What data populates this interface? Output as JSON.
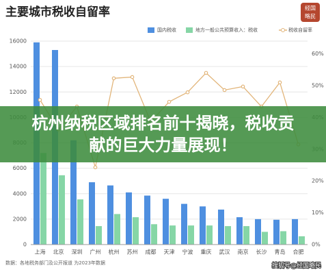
{
  "chart_data": {
    "type": "bar",
    "title": "主要城市税收自留率",
    "categories": [
      "上海",
      "北京",
      "深圳",
      "广州",
      "杭州",
      "苏州",
      "成都",
      "天津",
      "宁波",
      "重庆",
      "武汉",
      "南京",
      "长沙",
      "青岛",
      "合肥"
    ],
    "series": [
      {
        "name": "国内税收",
        "type": "bar",
        "color": "#4e8fe0",
        "values": [
          15900,
          15300,
          8200,
          4900,
          4650,
          4100,
          3850,
          3600,
          3200,
          3000,
          2750,
          2150,
          2000,
          1950,
          2000
        ]
      },
      {
        "name": "地方一般公共预算收入：税收",
        "type": "bar",
        "color": "#86d6a6",
        "values": [
          7200,
          5450,
          3550,
          1450,
          2400,
          2150,
          1600,
          1500,
          1500,
          1500,
          1450,
          1450,
          1000,
          1050,
          650
        ]
      },
      {
        "name": "税收自留率",
        "type": "line",
        "axis": "y2",
        "color": "#e2b57a",
        "values": [
          45.5,
          36.2,
          43.4,
          24.3,
          52.3,
          52.7,
          38.6,
          44.9,
          47.9,
          54,
          48.6,
          49.7,
          43.4,
          51,
          31.5
        ]
      }
    ],
    "ylim": [
      0,
      16000
    ],
    "yticks": [
      0,
      2000,
      4000,
      6000,
      8000,
      10000,
      12000,
      14000,
      16000
    ],
    "y2lim": [
      0,
      64
    ],
    "y2ticks": [
      {
        "value": 0,
        "label": "0%"
      },
      {
        "value": 10,
        "label": "10%"
      },
      {
        "value": 20,
        "label": "20%"
      },
      {
        "value": 30,
        "label": "30%"
      },
      {
        "value": 40,
        "label": "40%"
      },
      {
        "value": 50,
        "label": "50%"
      },
      {
        "value": 60,
        "label": "60%"
      }
    ],
    "grid": true,
    "source": "数据：各地税务部门及公开报道 为2023年数据"
  },
  "logo": {
    "lines": [
      "经国",
      "略民"
    ]
  },
  "overlay": {
    "headline": "杭州纳税区域排名前十揭晓，税收贡献的巨大力量展现！"
  },
  "watermark": "搜狐号@经国略民"
}
